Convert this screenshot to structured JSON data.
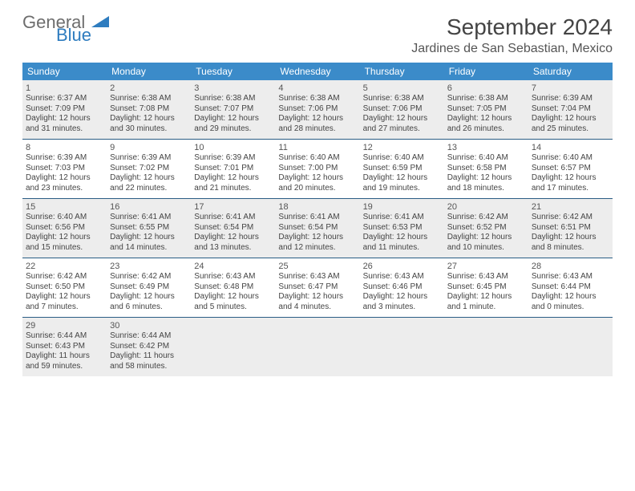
{
  "colors": {
    "header_bg": "#3b8bc9",
    "week_border": "#2a5d85",
    "shaded_bg": "#ededed",
    "text": "#444444",
    "logo_gray": "#6d6d6d",
    "logo_blue": "#2e7cbf"
  },
  "logo": {
    "word1": "General",
    "word2": "Blue"
  },
  "title": "September 2024",
  "location": "Jardines de San Sebastian, Mexico",
  "dow": [
    "Sunday",
    "Monday",
    "Tuesday",
    "Wednesday",
    "Thursday",
    "Friday",
    "Saturday"
  ],
  "shaded_weeks": [
    0,
    2,
    4
  ],
  "weeks": [
    [
      {
        "n": "1",
        "sr": "6:37 AM",
        "ss": "7:09 PM",
        "dl": "12 hours and 31 minutes."
      },
      {
        "n": "2",
        "sr": "6:38 AM",
        "ss": "7:08 PM",
        "dl": "12 hours and 30 minutes."
      },
      {
        "n": "3",
        "sr": "6:38 AM",
        "ss": "7:07 PM",
        "dl": "12 hours and 29 minutes."
      },
      {
        "n": "4",
        "sr": "6:38 AM",
        "ss": "7:06 PM",
        "dl": "12 hours and 28 minutes."
      },
      {
        "n": "5",
        "sr": "6:38 AM",
        "ss": "7:06 PM",
        "dl": "12 hours and 27 minutes."
      },
      {
        "n": "6",
        "sr": "6:38 AM",
        "ss": "7:05 PM",
        "dl": "12 hours and 26 minutes."
      },
      {
        "n": "7",
        "sr": "6:39 AM",
        "ss": "7:04 PM",
        "dl": "12 hours and 25 minutes."
      }
    ],
    [
      {
        "n": "8",
        "sr": "6:39 AM",
        "ss": "7:03 PM",
        "dl": "12 hours and 23 minutes."
      },
      {
        "n": "9",
        "sr": "6:39 AM",
        "ss": "7:02 PM",
        "dl": "12 hours and 22 minutes."
      },
      {
        "n": "10",
        "sr": "6:39 AM",
        "ss": "7:01 PM",
        "dl": "12 hours and 21 minutes."
      },
      {
        "n": "11",
        "sr": "6:40 AM",
        "ss": "7:00 PM",
        "dl": "12 hours and 20 minutes."
      },
      {
        "n": "12",
        "sr": "6:40 AM",
        "ss": "6:59 PM",
        "dl": "12 hours and 19 minutes."
      },
      {
        "n": "13",
        "sr": "6:40 AM",
        "ss": "6:58 PM",
        "dl": "12 hours and 18 minutes."
      },
      {
        "n": "14",
        "sr": "6:40 AM",
        "ss": "6:57 PM",
        "dl": "12 hours and 17 minutes."
      }
    ],
    [
      {
        "n": "15",
        "sr": "6:40 AM",
        "ss": "6:56 PM",
        "dl": "12 hours and 15 minutes."
      },
      {
        "n": "16",
        "sr": "6:41 AM",
        "ss": "6:55 PM",
        "dl": "12 hours and 14 minutes."
      },
      {
        "n": "17",
        "sr": "6:41 AM",
        "ss": "6:54 PM",
        "dl": "12 hours and 13 minutes."
      },
      {
        "n": "18",
        "sr": "6:41 AM",
        "ss": "6:54 PM",
        "dl": "12 hours and 12 minutes."
      },
      {
        "n": "19",
        "sr": "6:41 AM",
        "ss": "6:53 PM",
        "dl": "12 hours and 11 minutes."
      },
      {
        "n": "20",
        "sr": "6:42 AM",
        "ss": "6:52 PM",
        "dl": "12 hours and 10 minutes."
      },
      {
        "n": "21",
        "sr": "6:42 AM",
        "ss": "6:51 PM",
        "dl": "12 hours and 8 minutes."
      }
    ],
    [
      {
        "n": "22",
        "sr": "6:42 AM",
        "ss": "6:50 PM",
        "dl": "12 hours and 7 minutes."
      },
      {
        "n": "23",
        "sr": "6:42 AM",
        "ss": "6:49 PM",
        "dl": "12 hours and 6 minutes."
      },
      {
        "n": "24",
        "sr": "6:43 AM",
        "ss": "6:48 PM",
        "dl": "12 hours and 5 minutes."
      },
      {
        "n": "25",
        "sr": "6:43 AM",
        "ss": "6:47 PM",
        "dl": "12 hours and 4 minutes."
      },
      {
        "n": "26",
        "sr": "6:43 AM",
        "ss": "6:46 PM",
        "dl": "12 hours and 3 minutes."
      },
      {
        "n": "27",
        "sr": "6:43 AM",
        "ss": "6:45 PM",
        "dl": "12 hours and 1 minute."
      },
      {
        "n": "28",
        "sr": "6:43 AM",
        "ss": "6:44 PM",
        "dl": "12 hours and 0 minutes."
      }
    ],
    [
      {
        "n": "29",
        "sr": "6:44 AM",
        "ss": "6:43 PM",
        "dl": "11 hours and 59 minutes."
      },
      {
        "n": "30",
        "sr": "6:44 AM",
        "ss": "6:42 PM",
        "dl": "11 hours and 58 minutes."
      },
      null,
      null,
      null,
      null,
      null
    ]
  ],
  "labels": {
    "sunrise": "Sunrise:",
    "sunset": "Sunset:",
    "daylight": "Daylight:"
  }
}
